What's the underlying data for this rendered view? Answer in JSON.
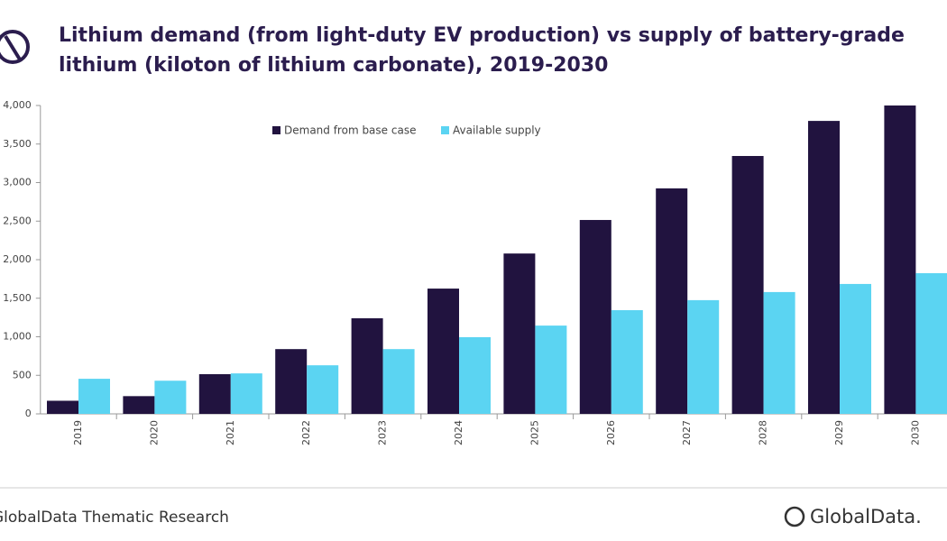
{
  "chart_data": {
    "type": "bar",
    "title": [
      "Lithium demand (from light-duty EV production) vs supply of battery-grade",
      "lithium (kiloton of lithium carbonate), 2019-2030"
    ],
    "categories": [
      "2019",
      "2020",
      "2021",
      "2022",
      "2023",
      "2024",
      "2025",
      "2026",
      "2027",
      "2028",
      "2029",
      "2030"
    ],
    "series": [
      {
        "name": "Demand from base case",
        "color": "#21133f",
        "values": [
          170,
          230,
          515,
          840,
          1240,
          1625,
          2080,
          2515,
          2925,
          3345,
          3800,
          4000
        ]
      },
      {
        "name": "Available supply",
        "color": "#5bd4f2",
        "values": [
          455,
          430,
          525,
          630,
          840,
          995,
          1145,
          1345,
          1475,
          1580,
          1685,
          1825
        ]
      }
    ],
    "ylim": [
      0,
      4000
    ],
    "yticks": [
      0,
      500,
      {
        "value": 1000,
        "label": "1,000"
      },
      {
        "value": 1500,
        "label": "1,500"
      },
      {
        "value": 2000,
        "label": "2,000"
      },
      {
        "value": 2500,
        "label": "2,500"
      },
      {
        "value": 3000,
        "label": "3,000"
      },
      {
        "value": 3500,
        "label": "3,500"
      },
      {
        "value": 4000,
        "label": "4,000"
      }
    ],
    "legend": "top",
    "source": "GlobalData Thematic Research",
    "logo_text": "GlobalData."
  }
}
